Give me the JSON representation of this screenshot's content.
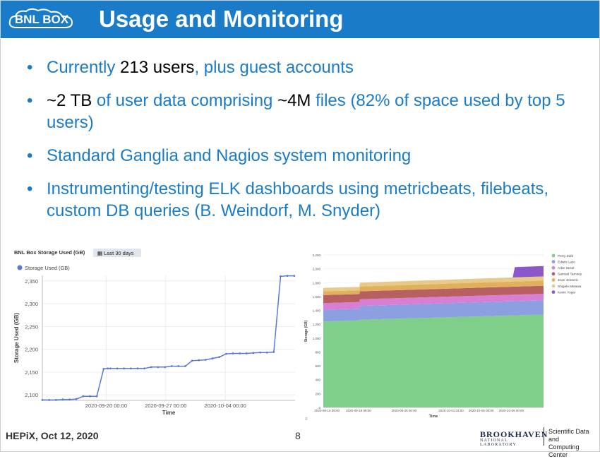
{
  "header": {
    "logo_text": "BNL BOX",
    "title": "Usage and Monitoring"
  },
  "bullets": [
    {
      "parts": [
        {
          "t": "Currently ",
          "k": false
        },
        {
          "t": "213 users",
          "k": true
        },
        {
          "t": ", plus guest accounts",
          "k": false
        }
      ]
    },
    {
      "parts": [
        {
          "t": " ~2 TB",
          "k": true
        },
        {
          "t": " of user data comprising ",
          "k": false
        },
        {
          "t": "~4M",
          "k": true
        },
        {
          "t": " files (82% of space used by top 5 users)",
          "k": false
        }
      ]
    },
    {
      "parts": [
        {
          "t": "Standard Ganglia and Nagios system monitoring",
          "k": false
        }
      ]
    },
    {
      "parts": [
        {
          "t": "Instrumenting/testing ELK dashboards using metricbeats, filebeats, custom DB queries (B. Weindorf, M. Snyder)",
          "k": false
        }
      ]
    }
  ],
  "footer": {
    "left": "HEPiX, Oct 12, 2020",
    "page": "8",
    "org_name": "BROOKHAVEN",
    "org_sub": "NATIONAL LABORATORY",
    "org_unit_1": "Scientific Data and",
    "org_unit_2": "Computing Center"
  },
  "colors": {
    "accent": "#1a7bc9",
    "line": "#5b78d6"
  },
  "chart_data": [
    {
      "type": "line",
      "title": "BNL Box Storage Used (GB)",
      "time_filter": "Last 30 days",
      "xlabel": "Time",
      "ylabel": "Storage Used (GB)",
      "legend": "Storage Used (GB)",
      "legend_position": "top-left",
      "ylim": [
        2088,
        2362
      ],
      "yticks": [
        2100,
        2150,
        2200,
        2250,
        2300,
        2350
      ],
      "xticks": [
        {
          "label": "2020-09-20 00:00",
          "day": 7.5
        },
        {
          "label": "2020-09-27 00:00",
          "day": 14.5
        },
        {
          "label": "2020-10-04 00:00",
          "day": 21.5
        }
      ],
      "xlim": [
        0,
        29.7
      ],
      "x_days": [
        0,
        0.8,
        1.6,
        2.4,
        3.2,
        4,
        4.8,
        5.6,
        6.4,
        7.2,
        7.7,
        8,
        8.8,
        9.6,
        10.4,
        11.2,
        12,
        12.8,
        13.6,
        14.4,
        15.2,
        16,
        16.8,
        17.6,
        18.4,
        19.2,
        20,
        20.8,
        21.6,
        22.4,
        23.2,
        24,
        24.8,
        25.6,
        26.4,
        27.2,
        28,
        28.8,
        29.6
      ],
      "values": [
        2089,
        2089,
        2089,
        2090,
        2090,
        2091,
        2097,
        2097,
        2097,
        2157,
        2158,
        2158,
        2158,
        2158,
        2158,
        2158,
        2158,
        2161,
        2161,
        2161,
        2163,
        2163,
        2163,
        2175,
        2176,
        2177,
        2180,
        2183,
        2190,
        2191,
        2191,
        2191,
        2192,
        2193,
        2193,
        2194,
        2360,
        2361,
        2361
      ],
      "grid": true
    },
    {
      "type": "area",
      "stacked": true,
      "xlabel": "Time",
      "ylabel": "Storage (GB)",
      "ylim": [
        0,
        2200
      ],
      "yticks": [
        0,
        200,
        400,
        600,
        800,
        1000,
        1200,
        1400,
        1600,
        1800,
        2000,
        2200
      ],
      "ytick_labels": [
        "0",
        "200",
        "400",
        "600",
        "800",
        "1,000",
        "1,200",
        "1,400",
        "1,600",
        "1,800",
        "2,000",
        "2,200"
      ],
      "xlim": [
        0,
        30
      ],
      "xticks": [
        {
          "label": "2020-09-15 09:00",
          "day": 0.5
        },
        {
          "label": "2020-09-19 09:00",
          "day": 4.8
        },
        {
          "label": "2020-09-25 00:00",
          "day": 11
        },
        {
          "label": "2020-10-01 03:00",
          "day": 17.4
        },
        {
          "label": "2020-10-05 00:00",
          "day": 21.5
        },
        {
          "label": "2020-10-09 00:00",
          "day": 25.6
        }
      ],
      "x": [
        0,
        4.9,
        5.0,
        30
      ],
      "legend_position": "right",
      "series": [
        {
          "name": "Perry Zahl",
          "color": "#7fce8a",
          "values": [
            1240,
            1255,
            1265,
            1340
          ]
        },
        {
          "name": "Edwin Lazo",
          "color": "#8c9fe0",
          "values": [
            170,
            170,
            200,
            205
          ]
        },
        {
          "name": "Arbe Sesel",
          "color": "#d97fd3",
          "values": [
            95,
            95,
            95,
            95
          ]
        },
        {
          "name": "Samuel Tamney",
          "color": "#b86060",
          "values": [
            115,
            115,
            115,
            115
          ]
        },
        {
          "name": "Jean Jelonzic",
          "color": "#e0b05c",
          "values": [
            55,
            55,
            70,
            75
          ]
        },
        {
          "name": "Shigeki Misawa",
          "color": "#e7c98a",
          "values": [
            50,
            50,
            55,
            60
          ]
        },
        {
          "name": "Kevin Yoger",
          "color": "#8a58c8",
          "values": [
            0,
            0,
            0,
            0
          ]
        }
      ],
      "spike": {
        "series": "Kevin Yoger",
        "x_start": 25.8,
        "x_end": 30,
        "value": 150
      }
    }
  ]
}
